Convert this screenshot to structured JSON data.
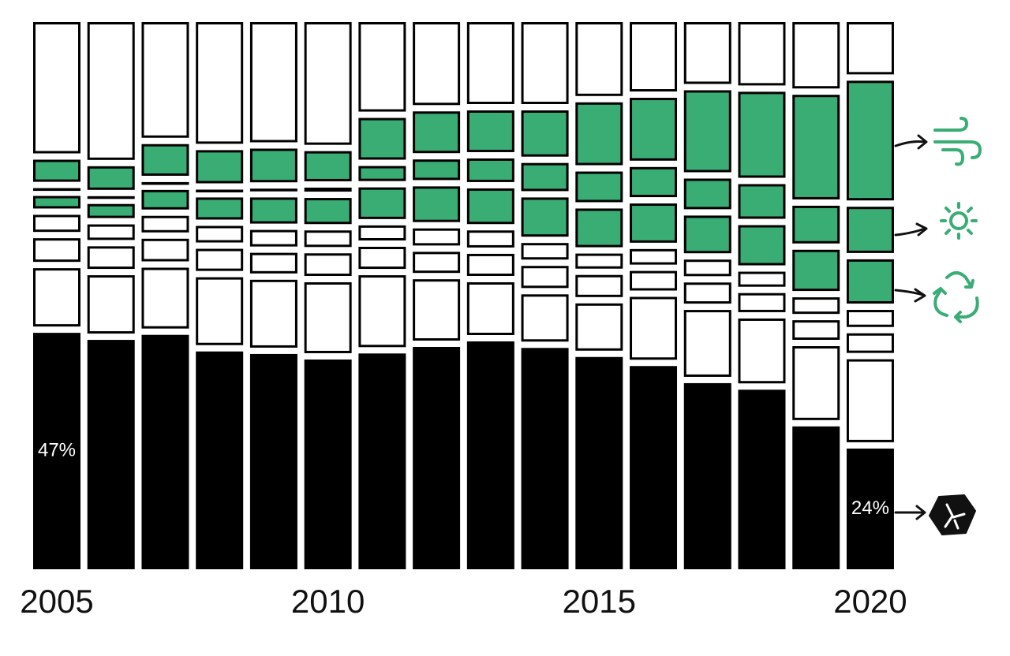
{
  "chart_data": {
    "type": "stacked_bar",
    "categories": [
      "2005",
      null,
      null,
      null,
      null,
      "2010",
      null,
      null,
      null,
      null,
      "2015",
      null,
      null,
      null,
      null,
      "2020"
    ],
    "ylim": [
      0,
      100
    ],
    "series": [
      {
        "color": "#000000",
        "values": [
          47,
          45.6,
          46.6,
          43.3,
          42.8,
          41.7,
          42.9,
          44.2,
          45.3,
          44.0,
          42.2,
          40.4,
          37.0,
          35.7,
          28.4,
          24
        ],
        "value_labels": [
          "47%",
          null,
          null,
          null,
          null,
          null,
          null,
          null,
          null,
          null,
          null,
          null,
          null,
          null,
          null,
          "24%"
        ]
      },
      {
        "color": "#ffffff",
        "values": [
          11.6,
          11.6,
          12.1,
          13.5,
          13.5,
          14.1,
          14.3,
          12.2,
          10.5,
          9.4,
          9.4,
          12.5,
          13.3,
          12.9,
          14.7,
          16.5
        ]
      },
      {
        "color": "#ffffff",
        "values": [
          4.7,
          4.5,
          4.5,
          4.4,
          4.1,
          4.5,
          4.4,
          4.2,
          4.4,
          4.4,
          4.4,
          3.9,
          4.2,
          3.8,
          3.9,
          3.9
        ]
      },
      {
        "color": "#ffffff",
        "values": [
          3.4,
          3.1,
          3.3,
          3.3,
          3.3,
          3.3,
          3.0,
          3.4,
          3.4,
          3.3,
          3.0,
          3.1,
          3.3,
          3.0,
          3.3,
          3.4
        ]
      },
      {
        "color": "#3aad75",
        "values": [
          2.5,
          2.8,
          3.9,
          4.4,
          5.2,
          5.2,
          6.3,
          7.1,
          7.1,
          7.8,
          7.7,
          7.8,
          7.5,
          8.0,
          8.2,
          8.8
        ]
      },
      {
        "color": "#3aad75",
        "values": [
          0.3,
          0.3,
          0.3,
          0.3,
          0.5,
          0.8,
          3.0,
          4.1,
          4.7,
          5.6,
          6.1,
          6.0,
          6.1,
          6.9,
          7.5,
          9.2
        ]
      },
      {
        "color": "#3aad75",
        "values": [
          4.4,
          4.7,
          6.3,
          6.6,
          6.7,
          6.0,
          8.3,
          8.3,
          8.3,
          9.2,
          12.5,
          12.5,
          16.3,
          17.1,
          20.8,
          23.8
        ]
      },
      {
        "color": "#ffffff",
        "values": [
          26.1,
          27.4,
          23.0,
          24.2,
          23.9,
          24.4,
          17.8,
          16.5,
          16.3,
          16.3,
          14.7,
          13.8,
          12.3,
          12.6,
          13.2,
          10.4
        ]
      }
    ]
  }
}
